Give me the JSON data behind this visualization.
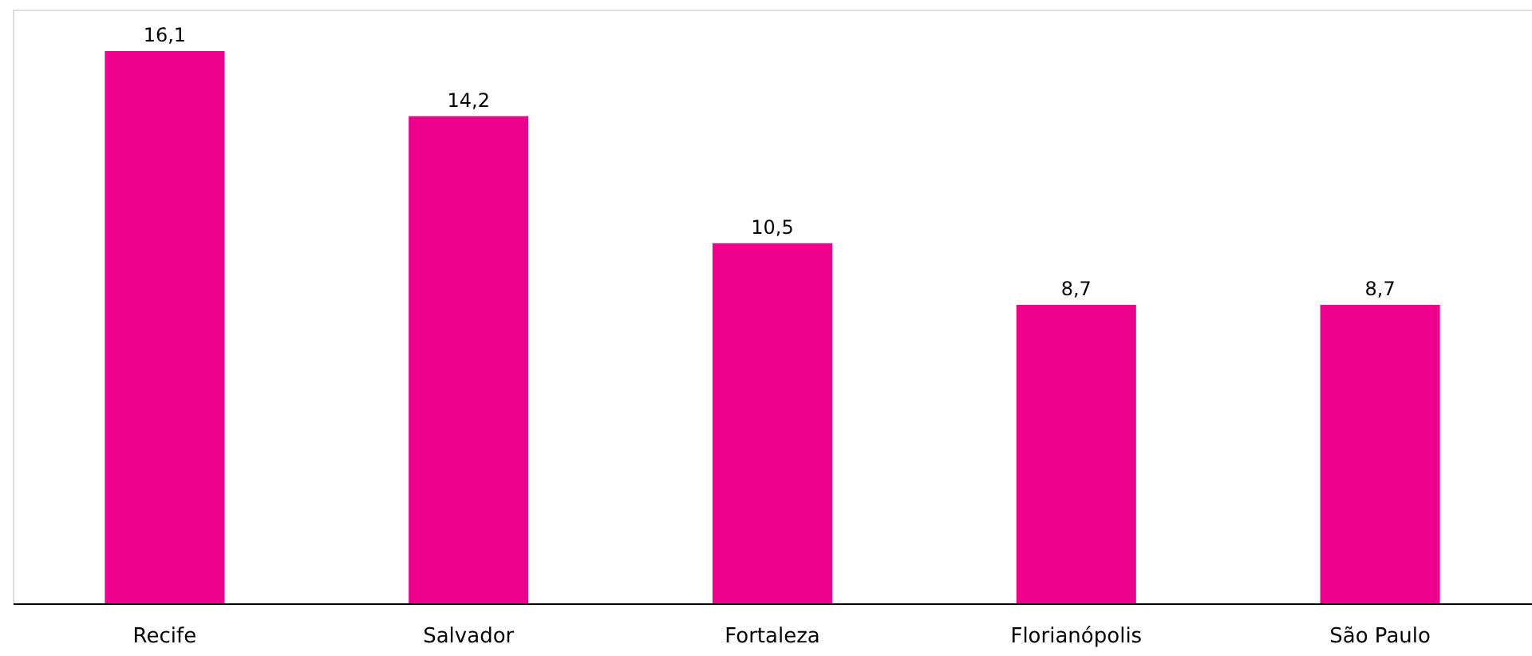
{
  "chart_data": {
    "type": "bar",
    "categories": [
      "Recife",
      "Salvador",
      "Fortaleza",
      "Florianópolis",
      "São Paulo"
    ],
    "values": [
      16.1,
      14.2,
      10.5,
      8.7,
      8.7
    ],
    "value_labels": [
      "16,1",
      "14,2",
      "10,5",
      "8,7",
      "8,7"
    ],
    "color": "#ec008c",
    "tick_labels": "x"
  }
}
